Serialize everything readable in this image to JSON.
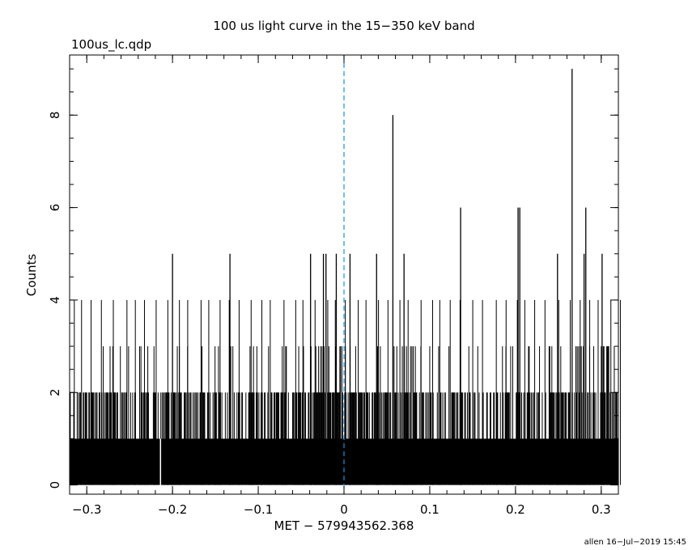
{
  "chart_data": {
    "type": "bar",
    "title": "100 us light curve in the 15−350 keV band",
    "subtitle": "100us_lc.qdp",
    "xlabel": "MET − 579943562.368",
    "ylabel": "Counts",
    "footer": "allen 16−Jul−2019 15:45",
    "xlim": [
      -0.32,
      0.32
    ],
    "ylim": [
      -0.2,
      9.3
    ],
    "x_ticks": [
      -0.3,
      -0.2,
      -0.1,
      0,
      0.1,
      0.2,
      0.3
    ],
    "x_tick_labels": [
      "−0.3",
      "−0.2",
      "−0.1",
      "0",
      "0.1",
      "0.2",
      "0.3"
    ],
    "y_ticks": [
      0,
      2,
      4,
      6,
      8
    ],
    "y_tick_labels": [
      "0",
      "2",
      "4",
      "6",
      "8"
    ],
    "bin_width": 0.0001,
    "trigger_line_x": 0,
    "grid": false,
    "colors": {
      "histogram": "#000000",
      "trigger_line": "#1f8fd6"
    },
    "peaks": [
      {
        "x": -0.2,
        "y": 5
      },
      {
        "x": -0.133,
        "y": 5
      },
      {
        "x": -0.039,
        "y": 5
      },
      {
        "x": -0.024,
        "y": 5
      },
      {
        "x": -0.021,
        "y": 5
      },
      {
        "x": -0.009,
        "y": 5
      },
      {
        "x": 0.007,
        "y": 5
      },
      {
        "x": 0.038,
        "y": 5
      },
      {
        "x": 0.057,
        "y": 8
      },
      {
        "x": 0.07,
        "y": 5
      },
      {
        "x": 0.136,
        "y": 6
      },
      {
        "x": 0.203,
        "y": 6
      },
      {
        "x": 0.205,
        "y": 6
      },
      {
        "x": 0.249,
        "y": 5
      },
      {
        "x": 0.266,
        "y": 9
      },
      {
        "x": 0.28,
        "y": 5
      },
      {
        "x": 0.282,
        "y": 6
      },
      {
        "x": 0.301,
        "y": 5
      }
    ],
    "dips": [
      {
        "x": -0.214,
        "y": 0
      }
    ]
  }
}
